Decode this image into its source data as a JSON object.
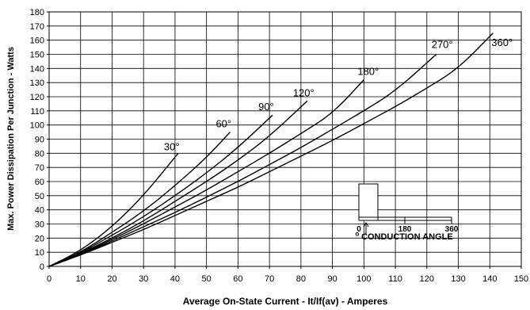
{
  "chart_data": {
    "type": "line",
    "title": "",
    "xlabel": "Average On-State Current - It/If(av) - Amperes",
    "ylabel": "Max. Power Dissipation Per Junction - Watts",
    "xlim": [
      0,
      150
    ],
    "ylim": [
      0,
      180
    ],
    "x_ticks": [
      0,
      10,
      20,
      30,
      40,
      50,
      60,
      70,
      80,
      90,
      100,
      110,
      120,
      130,
      140,
      150
    ],
    "y_ticks": [
      0,
      10,
      20,
      30,
      40,
      50,
      60,
      70,
      80,
      90,
      100,
      110,
      120,
      130,
      140,
      150,
      160,
      170,
      180
    ],
    "grid": true,
    "series": [
      {
        "name": "30°",
        "x": [
          0,
          10,
          20,
          30,
          41
        ],
        "y": [
          0,
          11,
          28,
          50,
          80
        ]
      },
      {
        "name": "60°",
        "x": [
          0,
          10,
          20,
          30,
          40,
          50,
          57.5
        ],
        "y": [
          0,
          10,
          24,
          39,
          57,
          77,
          95
        ]
      },
      {
        "name": "90°",
        "x": [
          0,
          10,
          20,
          30,
          40,
          50,
          60,
          71
        ],
        "y": [
          0,
          9.5,
          22,
          35,
          50,
          66,
          84,
          107
        ]
      },
      {
        "name": "120°",
        "x": [
          0,
          10,
          20,
          30,
          40,
          50,
          60,
          70,
          82
        ],
        "y": [
          0,
          9,
          20,
          32,
          46,
          60,
          75,
          92,
          117
        ]
      },
      {
        "name": "180°",
        "x": [
          0,
          10,
          20,
          30,
          40,
          50,
          60,
          70,
          80,
          90,
          100
        ],
        "y": [
          0,
          8.5,
          19,
          30,
          42,
          54,
          67,
          80,
          94,
          108,
          132
        ]
      },
      {
        "name": "270°",
        "x": [
          0,
          10,
          20,
          30,
          40,
          50,
          60,
          70,
          80,
          90,
          100,
          110,
          123
        ],
        "y": [
          0,
          8,
          18,
          28,
          38,
          49,
          60,
          72,
          84,
          97,
          110,
          124,
          150
        ]
      },
      {
        "name": "360°",
        "x": [
          0,
          10,
          20,
          30,
          40,
          50,
          60,
          70,
          80,
          90,
          100,
          110,
          120,
          130,
          141
        ],
        "y": [
          0,
          8,
          17,
          26,
          36,
          46,
          56,
          67,
          78,
          89,
          101,
          113,
          126,
          140,
          165
        ]
      }
    ],
    "annotations": {
      "inset_ticks": [
        "0",
        "180",
        "360"
      ],
      "inset_label": "CONDUCTION ANGLE",
      "inset_symbol": "°"
    }
  }
}
